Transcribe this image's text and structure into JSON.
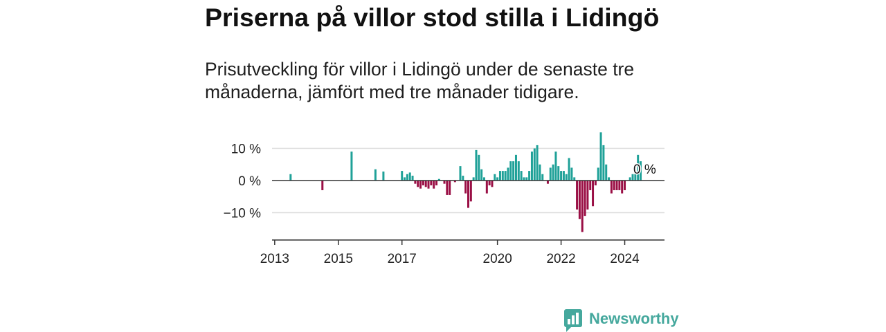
{
  "colors": {
    "positive": "#1fa198",
    "negative": "#9a0f45",
    "grid": "#dcdcdc",
    "axis": "#333333",
    "brand": "#45a89d"
  },
  "brand": {
    "name": "Newsworthy",
    "icon": "newsworthy-logo-icon"
  },
  "chart_data": {
    "type": "bar",
    "title": "Priserna på villor stod stilla i Lidingö",
    "subtitle": "Prisutveckling för villor i Lidingö under de senaste tre månaderna, jämfört med tre månader tidigare.",
    "xlim": [
      "2012-12",
      "2025-04"
    ],
    "ylim": [
      -18.5,
      15.5
    ],
    "grid": true,
    "xticks": [
      {
        "value": "2013-01",
        "label": "2013"
      },
      {
        "value": "2015-01",
        "label": "2015"
      },
      {
        "value": "2017-01",
        "label": "2017"
      },
      {
        "value": "2020-01",
        "label": "2020"
      },
      {
        "value": "2022-01",
        "label": "2022"
      },
      {
        "value": "2024-01",
        "label": "2024"
      }
    ],
    "yticks": [
      {
        "value": 10,
        "label": "10 %"
      },
      {
        "value": 0,
        "label": "0 %"
      },
      {
        "value": -10,
        "label": "−10 %"
      }
    ],
    "series": [
      {
        "x": [
          "2013-07",
          "2014-07",
          "2015-06",
          "2016-03",
          "2016-06",
          "2017-01",
          "2017-02",
          "2017-03",
          "2017-04",
          "2017-05",
          "2017-06",
          "2017-07",
          "2017-08",
          "2017-09",
          "2017-10",
          "2017-11",
          "2017-12",
          "2018-01",
          "2018-02",
          "2018-03",
          "2018-05",
          "2018-06",
          "2018-07",
          "2018-09",
          "2018-11",
          "2018-12",
          "2019-01",
          "2019-02",
          "2019-03",
          "2019-04",
          "2019-05",
          "2019-06",
          "2019-07",
          "2019-08",
          "2019-09",
          "2019-10",
          "2019-11",
          "2019-12",
          "2020-01",
          "2020-02",
          "2020-03",
          "2020-04",
          "2020-05",
          "2020-06",
          "2020-07",
          "2020-08",
          "2020-09",
          "2020-10",
          "2020-11",
          "2020-12",
          "2021-01",
          "2021-02",
          "2021-03",
          "2021-04",
          "2021-05",
          "2021-06",
          "2021-08",
          "2021-09",
          "2021-10",
          "2021-11",
          "2021-12",
          "2022-01",
          "2022-02",
          "2022-03",
          "2022-04",
          "2022-05",
          "2022-06",
          "2022-07",
          "2022-08",
          "2022-09",
          "2022-10",
          "2022-11",
          "2022-12",
          "2023-01",
          "2023-02",
          "2023-03",
          "2023-04",
          "2023-05",
          "2023-06",
          "2023-07",
          "2023-08",
          "2023-09",
          "2023-10",
          "2023-11",
          "2023-12",
          "2024-01",
          "2024-03",
          "2024-04",
          "2024-05",
          "2024-06",
          "2024-07",
          "2024-08"
        ],
        "values": [
          2,
          -3,
          9,
          3.5,
          2.8,
          3,
          1,
          2,
          2.5,
          1.5,
          -1,
          -2,
          -2.5,
          -1.5,
          -2,
          -2.5,
          -1.5,
          -2.5,
          -1.5,
          0.5,
          -1,
          -4.5,
          -4.5,
          -0.5,
          4.5,
          1.5,
          -4,
          -8.5,
          -6.5,
          1,
          9.5,
          8,
          3.5,
          1,
          -4,
          -1.5,
          -2,
          2,
          1,
          3,
          3,
          3,
          4,
          6,
          6,
          8,
          6,
          3,
          1,
          1,
          3,
          9,
          10,
          11,
          5,
          2,
          -1,
          4,
          5,
          9,
          4.5,
          3,
          3,
          2,
          7,
          4,
          1,
          -9,
          -12,
          -16,
          -11,
          -9,
          -3,
          -8,
          -1.5,
          4,
          15,
          11,
          5,
          1,
          -4,
          -3,
          -3,
          -3,
          -4,
          -3,
          1,
          2,
          2,
          8,
          6,
          0
        ]
      }
    ],
    "annotations": [
      {
        "x": "2024-08",
        "value": 0,
        "label": "0 %"
      }
    ]
  }
}
